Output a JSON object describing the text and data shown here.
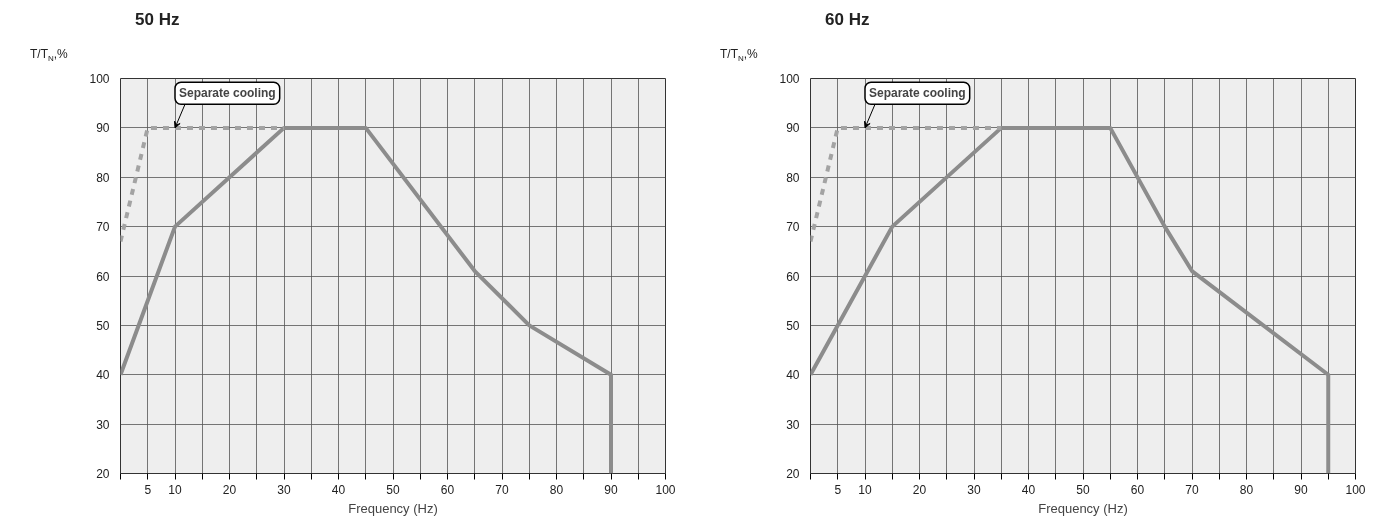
{
  "chart_data": [
    {
      "type": "line",
      "title": "50 Hz",
      "xlabel": "Frequency (Hz)",
      "ylabel": "T/T$_{N}$,%",
      "xlim": [
        0,
        100
      ],
      "ylim": [
        20,
        100
      ],
      "xticks": [
        {
          "value": 0,
          "label": null
        },
        5,
        10,
        {
          "value": 15,
          "label": null
        },
        20,
        {
          "value": 25,
          "label": null
        },
        30,
        {
          "value": 35,
          "label": null
        },
        40,
        {
          "value": 45,
          "label": null
        },
        50,
        {
          "value": 55,
          "label": null
        },
        60,
        {
          "value": 65,
          "label": null
        },
        70,
        {
          "value": 75,
          "label": null
        },
        80,
        {
          "value": 85,
          "label": null
        },
        90,
        {
          "value": 95,
          "label": null
        },
        100
      ],
      "yticks": [
        20,
        30,
        40,
        50,
        60,
        70,
        80,
        90,
        100
      ],
      "grid": true,
      "series": [
        {
          "color": "#8c8c8c",
          "line_style": "solid",
          "x": [
            0,
            10,
            30,
            45,
            65,
            75,
            90,
            90
          ],
          "values": [
            40,
            70,
            90,
            90,
            61,
            50,
            40,
            20
          ]
        },
        {
          "color": "#a3a3a3",
          "line_style": "dashed",
          "x": [
            0,
            5,
            30
          ],
          "values": [
            67,
            90,
            90
          ]
        }
      ],
      "annotations": [
        {
          "text": "Separate cooling",
          "x": 10,
          "y": 90
        }
      ]
    },
    {
      "type": "line",
      "title": "60 Hz",
      "xlabel": "Frequency (Hz)",
      "ylabel": "T/T$_{N}$,%",
      "xlim": [
        0,
        100
      ],
      "ylim": [
        20,
        100
      ],
      "xticks": [
        {
          "value": 0,
          "label": null
        },
        5,
        10,
        {
          "value": 15,
          "label": null
        },
        20,
        {
          "value": 25,
          "label": null
        },
        30,
        {
          "value": 35,
          "label": null
        },
        40,
        {
          "value": 45,
          "label": null
        },
        50,
        {
          "value": 55,
          "label": null
        },
        60,
        {
          "value": 65,
          "label": null
        },
        70,
        {
          "value": 75,
          "label": null
        },
        80,
        {
          "value": 85,
          "label": null
        },
        90,
        {
          "value": 95,
          "label": null
        },
        100
      ],
      "yticks": [
        20,
        30,
        40,
        50,
        60,
        70,
        80,
        90,
        100
      ],
      "grid": true,
      "series": [
        {
          "color": "#8c8c8c",
          "line_style": "solid",
          "x": [
            0,
            15,
            35,
            55,
            65,
            70,
            95,
            95
          ],
          "values": [
            40,
            70,
            90,
            90,
            70,
            61,
            40,
            20
          ]
        },
        {
          "color": "#a3a3a3",
          "line_style": "dashed",
          "x": [
            0,
            5,
            35
          ],
          "values": [
            67,
            90,
            90
          ]
        }
      ],
      "annotations": [
        {
          "text": "Separate cooling",
          "x": 10,
          "y": 90
        }
      ]
    }
  ]
}
